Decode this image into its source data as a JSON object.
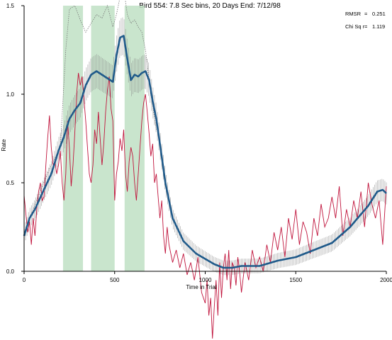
{
  "chart_data": {
    "type": "line",
    "title": "Bird 554: 7.8 Sec bins, 20 Days End: 7/12/98",
    "xlabel": "Time in Trial",
    "ylabel": "Rate",
    "xlim": [
      0,
      2000
    ],
    "ylim": [
      0,
      1.5
    ],
    "xticks": [
      0,
      500,
      1000,
      1500,
      2000
    ],
    "yticks": [
      0.0,
      0.5,
      1.0,
      1.5
    ],
    "xtick_labels": [
      "0",
      "500",
      "1000",
      "1500",
      "2000"
    ],
    "ytick_labels": [
      "0.0",
      "0.5",
      "1.0",
      "1.5"
    ],
    "annotations": [
      {
        "label": "RMSR",
        "sep": "=",
        "value": "0.251"
      },
      {
        "label": "Chi Sq r",
        "sep": "=",
        "value": "1.119"
      }
    ],
    "shaded_regions": [
      {
        "x0": 215,
        "x1": 325
      },
      {
        "x0": 370,
        "x1": 500
      },
      {
        "x0": 555,
        "x1": 665
      }
    ],
    "model": {
      "x": [
        0,
        30,
        60,
        100,
        150,
        190,
        220,
        250,
        280,
        310,
        340,
        370,
        400,
        430,
        460,
        490,
        510,
        530,
        550,
        570,
        590,
        610,
        630,
        650,
        670,
        690,
        710,
        730,
        750,
        780,
        820,
        880,
        950,
        1000,
        1050,
        1100,
        1150,
        1200,
        1300,
        1400,
        1500,
        1600,
        1700,
        1800,
        1900,
        1950,
        1980,
        2000
      ],
      "y": [
        0.2,
        0.3,
        0.35,
        0.44,
        0.55,
        0.68,
        0.76,
        0.86,
        0.91,
        0.95,
        1.05,
        1.11,
        1.13,
        1.11,
        1.09,
        1.07,
        1.22,
        1.32,
        1.33,
        1.2,
        1.08,
        1.11,
        1.1,
        1.12,
        1.13,
        1.08,
        0.96,
        0.86,
        0.72,
        0.5,
        0.3,
        0.17,
        0.1,
        0.07,
        0.04,
        0.02,
        0.02,
        0.03,
        0.03,
        0.06,
        0.08,
        0.12,
        0.16,
        0.25,
        0.37,
        0.45,
        0.46,
        0.44
      ]
    },
    "upper_band": {
      "x": [
        0,
        50,
        100,
        150,
        200,
        230,
        250,
        280,
        310,
        340,
        370,
        400,
        430,
        460,
        490,
        510,
        530,
        550,
        570,
        590,
        610,
        630,
        650,
        670,
        700,
        730
      ],
      "y": [
        0.22,
        0.35,
        0.48,
        0.6,
        0.7,
        1.25,
        1.48,
        1.5,
        1.42,
        1.35,
        1.4,
        1.45,
        1.43,
        1.5,
        1.38,
        1.45,
        1.55,
        1.6,
        1.45,
        1.4,
        1.42,
        1.38,
        1.35,
        1.25,
        1.0,
        0.8
      ]
    },
    "observed": {
      "x": [
        0,
        10,
        20,
        30,
        40,
        50,
        60,
        70,
        80,
        90,
        100,
        110,
        120,
        130,
        140,
        150,
        160,
        170,
        180,
        190,
        200,
        210,
        220,
        230,
        240,
        250,
        260,
        270,
        280,
        290,
        300,
        310,
        320,
        330,
        340,
        350,
        360,
        370,
        380,
        390,
        400,
        410,
        420,
        430,
        440,
        450,
        460,
        470,
        480,
        490,
        500,
        510,
        520,
        530,
        540,
        550,
        560,
        570,
        580,
        590,
        600,
        610,
        620,
        630,
        640,
        650,
        660,
        670,
        680,
        690,
        700,
        710,
        720,
        730,
        740,
        750,
        760,
        770,
        780,
        790,
        800,
        820,
        840,
        860,
        880,
        900,
        920,
        940,
        960,
        980,
        1000,
        1010,
        1020,
        1030,
        1040,
        1050,
        1060,
        1070,
        1080,
        1090,
        1100,
        1110,
        1120,
        1130,
        1140,
        1150,
        1160,
        1170,
        1180,
        1190,
        1200,
        1220,
        1240,
        1260,
        1280,
        1300,
        1320,
        1340,
        1360,
        1380,
        1400,
        1420,
        1440,
        1460,
        1480,
        1500,
        1520,
        1540,
        1560,
        1580,
        1600,
        1620,
        1640,
        1660,
        1680,
        1700,
        1720,
        1740,
        1760,
        1780,
        1800,
        1820,
        1840,
        1860,
        1880,
        1900,
        1920,
        1940,
        1960,
        1980,
        2000
      ],
      "y": [
        0.43,
        0.32,
        0.22,
        0.28,
        0.15,
        0.3,
        0.2,
        0.35,
        0.45,
        0.5,
        0.4,
        0.42,
        0.6,
        0.75,
        0.88,
        0.7,
        0.6,
        0.62,
        0.55,
        0.6,
        0.68,
        0.5,
        0.4,
        0.55,
        0.85,
        0.7,
        0.48,
        0.6,
        0.78,
        1.0,
        1.12,
        1.05,
        1.1,
        0.98,
        0.85,
        0.7,
        0.55,
        0.5,
        0.6,
        0.8,
        0.72,
        0.9,
        0.75,
        0.6,
        0.72,
        0.9,
        1.02,
        1.1,
        0.92,
        0.85,
        0.4,
        0.55,
        0.62,
        0.75,
        0.68,
        0.8,
        0.55,
        0.45,
        0.62,
        0.7,
        0.65,
        0.5,
        0.4,
        0.55,
        0.7,
        0.85,
        0.95,
        1.0,
        0.9,
        0.78,
        0.65,
        0.72,
        0.5,
        0.55,
        0.42,
        0.3,
        0.4,
        0.2,
        0.1,
        0.25,
        0.15,
        0.05,
        0.12,
        0.02,
        0.1,
        -0.02,
        0.05,
        -0.05,
        0.08,
        -0.12,
        -0.18,
        -0.05,
        -0.25,
        -0.15,
        -0.38,
        -0.2,
        -0.05,
        -0.25,
        0.05,
        -0.15,
        0.02,
        0.1,
        -0.05,
        0.12,
        -0.1,
        0.05,
        0.02,
        -0.08,
        0.08,
        0.0,
        -0.12,
        0.05,
        -0.05,
        0.12,
        0.02,
        0.08,
        0.0,
        0.15,
        0.05,
        0.22,
        0.12,
        0.25,
        0.08,
        0.3,
        0.18,
        0.35,
        0.15,
        0.28,
        0.22,
        0.1,
        0.3,
        0.2,
        0.38,
        0.25,
        0.3,
        0.42,
        0.3,
        0.48,
        0.2,
        0.35,
        0.25,
        0.4,
        0.3,
        0.45,
        0.25,
        0.5,
        0.38,
        0.3,
        0.4,
        0.15,
        0.48
      ]
    }
  }
}
